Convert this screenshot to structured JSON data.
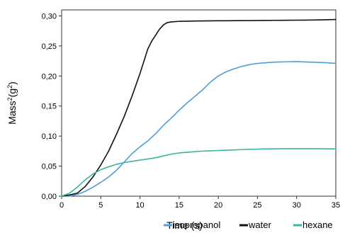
{
  "chart_data": {
    "type": "line",
    "title": "",
    "xlabel": "Time (s)",
    "ylabel_base": "Mass",
    "ylabel_sup1": "2",
    "ylabel_mid": "(g",
    "ylabel_sup2": "2",
    "ylabel_end": ")",
    "xlim": [
      0,
      35
    ],
    "ylim": [
      0,
      0.31
    ],
    "xticks": [
      0,
      5,
      10,
      15,
      20,
      25,
      30,
      35
    ],
    "yticks": [
      0,
      0.05,
      0.1,
      0.15,
      0.2,
      0.25,
      0.3
    ],
    "xtick_labels": [
      "0",
      "5",
      "10",
      "15",
      "20",
      "25",
      "30",
      "35"
    ],
    "ytick_labels": [
      "0,00",
      "0,05",
      "0,10",
      "0,15",
      "0,20",
      "0,25",
      "0,30"
    ],
    "grid": false,
    "legend_position": "bottom-right",
    "series": [
      {
        "name": "isopropanol",
        "color": "#4a9fdc",
        "x": [
          0,
          1,
          2,
          3,
          4,
          5,
          6,
          7,
          8,
          9,
          10,
          11,
          12,
          13,
          14,
          15,
          16,
          17,
          18,
          19,
          20,
          21,
          22,
          23,
          24,
          25,
          26,
          27,
          28,
          29,
          30,
          31,
          32,
          33,
          34,
          35
        ],
        "y": [
          0.0,
          0.0,
          0.003,
          0.008,
          0.015,
          0.023,
          0.032,
          0.043,
          0.057,
          0.071,
          0.082,
          0.092,
          0.104,
          0.118,
          0.13,
          0.143,
          0.155,
          0.166,
          0.177,
          0.19,
          0.2,
          0.207,
          0.212,
          0.216,
          0.219,
          0.221,
          0.222,
          0.223,
          0.2235,
          0.2238,
          0.224,
          0.2235,
          0.223,
          0.2225,
          0.222,
          0.221
        ]
      },
      {
        "name": "water",
        "color": "#111111",
        "x": [
          0,
          1,
          2,
          3,
          4,
          5,
          6,
          7,
          8,
          9,
          10,
          11,
          11.5,
          12,
          12.5,
          13,
          13.5,
          14,
          15,
          16,
          17,
          18,
          19,
          20,
          21,
          22,
          23,
          24,
          25,
          26,
          27,
          28,
          29,
          30,
          31,
          32,
          33,
          34,
          35
        ],
        "y": [
          0.0,
          0.002,
          0.005,
          0.016,
          0.032,
          0.052,
          0.075,
          0.103,
          0.133,
          0.167,
          0.204,
          0.245,
          0.258,
          0.268,
          0.278,
          0.285,
          0.289,
          0.29,
          0.291,
          0.2912,
          0.2915,
          0.2917,
          0.2918,
          0.292,
          0.292,
          0.2921,
          0.2922,
          0.2923,
          0.2924,
          0.2925,
          0.2926,
          0.2927,
          0.2928,
          0.2929,
          0.293,
          0.2932,
          0.2934,
          0.2937,
          0.294
        ]
      },
      {
        "name": "hexane",
        "color": "#3ab5a0",
        "x": [
          0,
          1,
          2,
          3,
          4,
          5,
          6,
          7,
          8,
          9,
          10,
          11,
          12,
          13,
          14,
          15,
          16,
          17,
          18,
          19,
          20,
          21,
          22,
          23,
          24,
          25,
          26,
          27,
          28,
          29,
          30,
          31,
          32,
          33,
          34,
          35
        ],
        "y": [
          0.0,
          0.005,
          0.015,
          0.027,
          0.037,
          0.044,
          0.049,
          0.053,
          0.056,
          0.058,
          0.06,
          0.062,
          0.064,
          0.067,
          0.07,
          0.072,
          0.073,
          0.074,
          0.075,
          0.0755,
          0.076,
          0.0765,
          0.077,
          0.0775,
          0.078,
          0.0783,
          0.0786,
          0.0788,
          0.079,
          0.079,
          0.079,
          0.079,
          0.079,
          0.079,
          0.0788,
          0.0787
        ]
      }
    ]
  }
}
